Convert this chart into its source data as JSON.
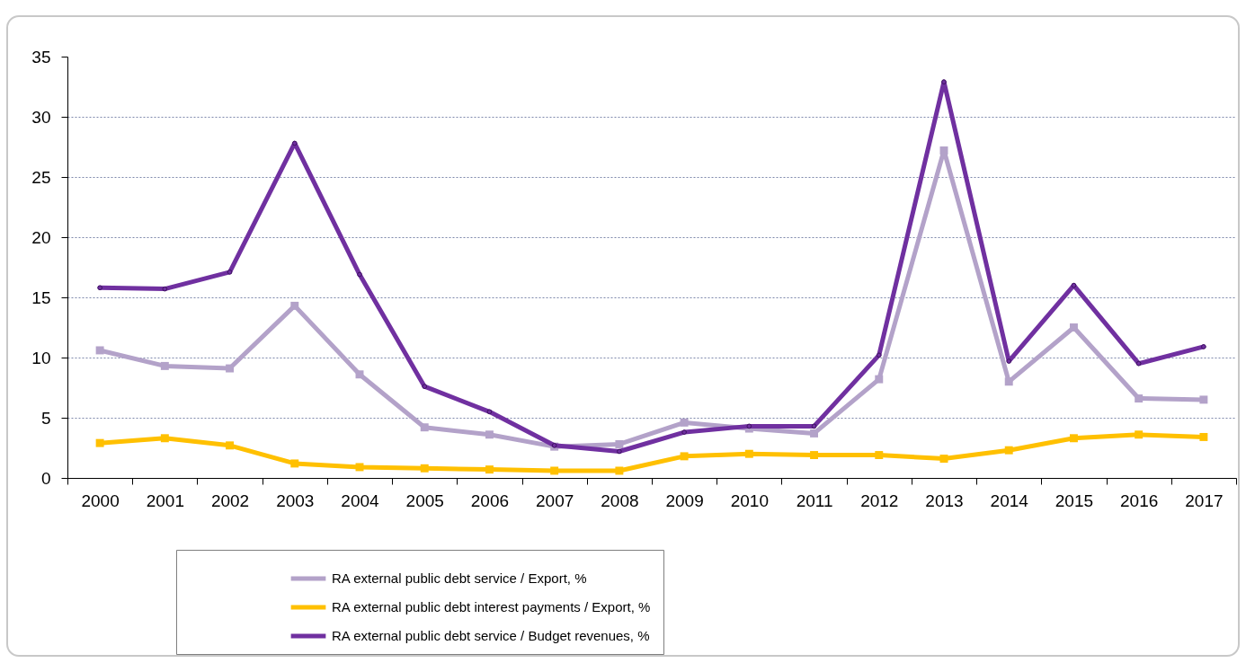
{
  "chart_data": {
    "type": "line",
    "categories": [
      "2000",
      "2001",
      "2002",
      "2003",
      "2004",
      "2005",
      "2006",
      "2007",
      "2008",
      "2009",
      "2010",
      "2011",
      "2012",
      "2013",
      "2014",
      "2015",
      "2016",
      "2017"
    ],
    "series": [
      {
        "name": "RA external public debt service / Export, %",
        "color": "#b3a2c9",
        "values": [
          10.6,
          9.3,
          9.1,
          14.3,
          8.6,
          4.2,
          3.6,
          2.6,
          2.8,
          4.6,
          4.1,
          3.7,
          8.2,
          27.2,
          8.0,
          12.5,
          6.6,
          6.5
        ]
      },
      {
        "name": "RA external public debt interest payments / Export, %",
        "color": "#ffc000",
        "values": [
          2.9,
          3.3,
          2.7,
          1.2,
          0.9,
          0.8,
          0.7,
          0.6,
          0.6,
          1.8,
          2.0,
          1.9,
          1.9,
          1.6,
          2.3,
          3.3,
          3.6,
          3.4
        ]
      },
      {
        "name": "RA external public debt service  / Budget revenues, %",
        "color": "#7030a0",
        "marker": "circle",
        "values": [
          15.8,
          15.7,
          17.1,
          27.8,
          16.9,
          7.6,
          5.5,
          2.7,
          2.2,
          3.8,
          4.3,
          4.3,
          10.2,
          32.9,
          9.7,
          16.0,
          9.5,
          10.9
        ]
      }
    ],
    "ylim": [
      0,
      35
    ],
    "yticks": [
      0,
      5,
      10,
      15,
      20,
      25,
      30,
      35
    ],
    "grid": "y",
    "legend": "bottom",
    "marker": "square",
    "line_style": "solid"
  }
}
